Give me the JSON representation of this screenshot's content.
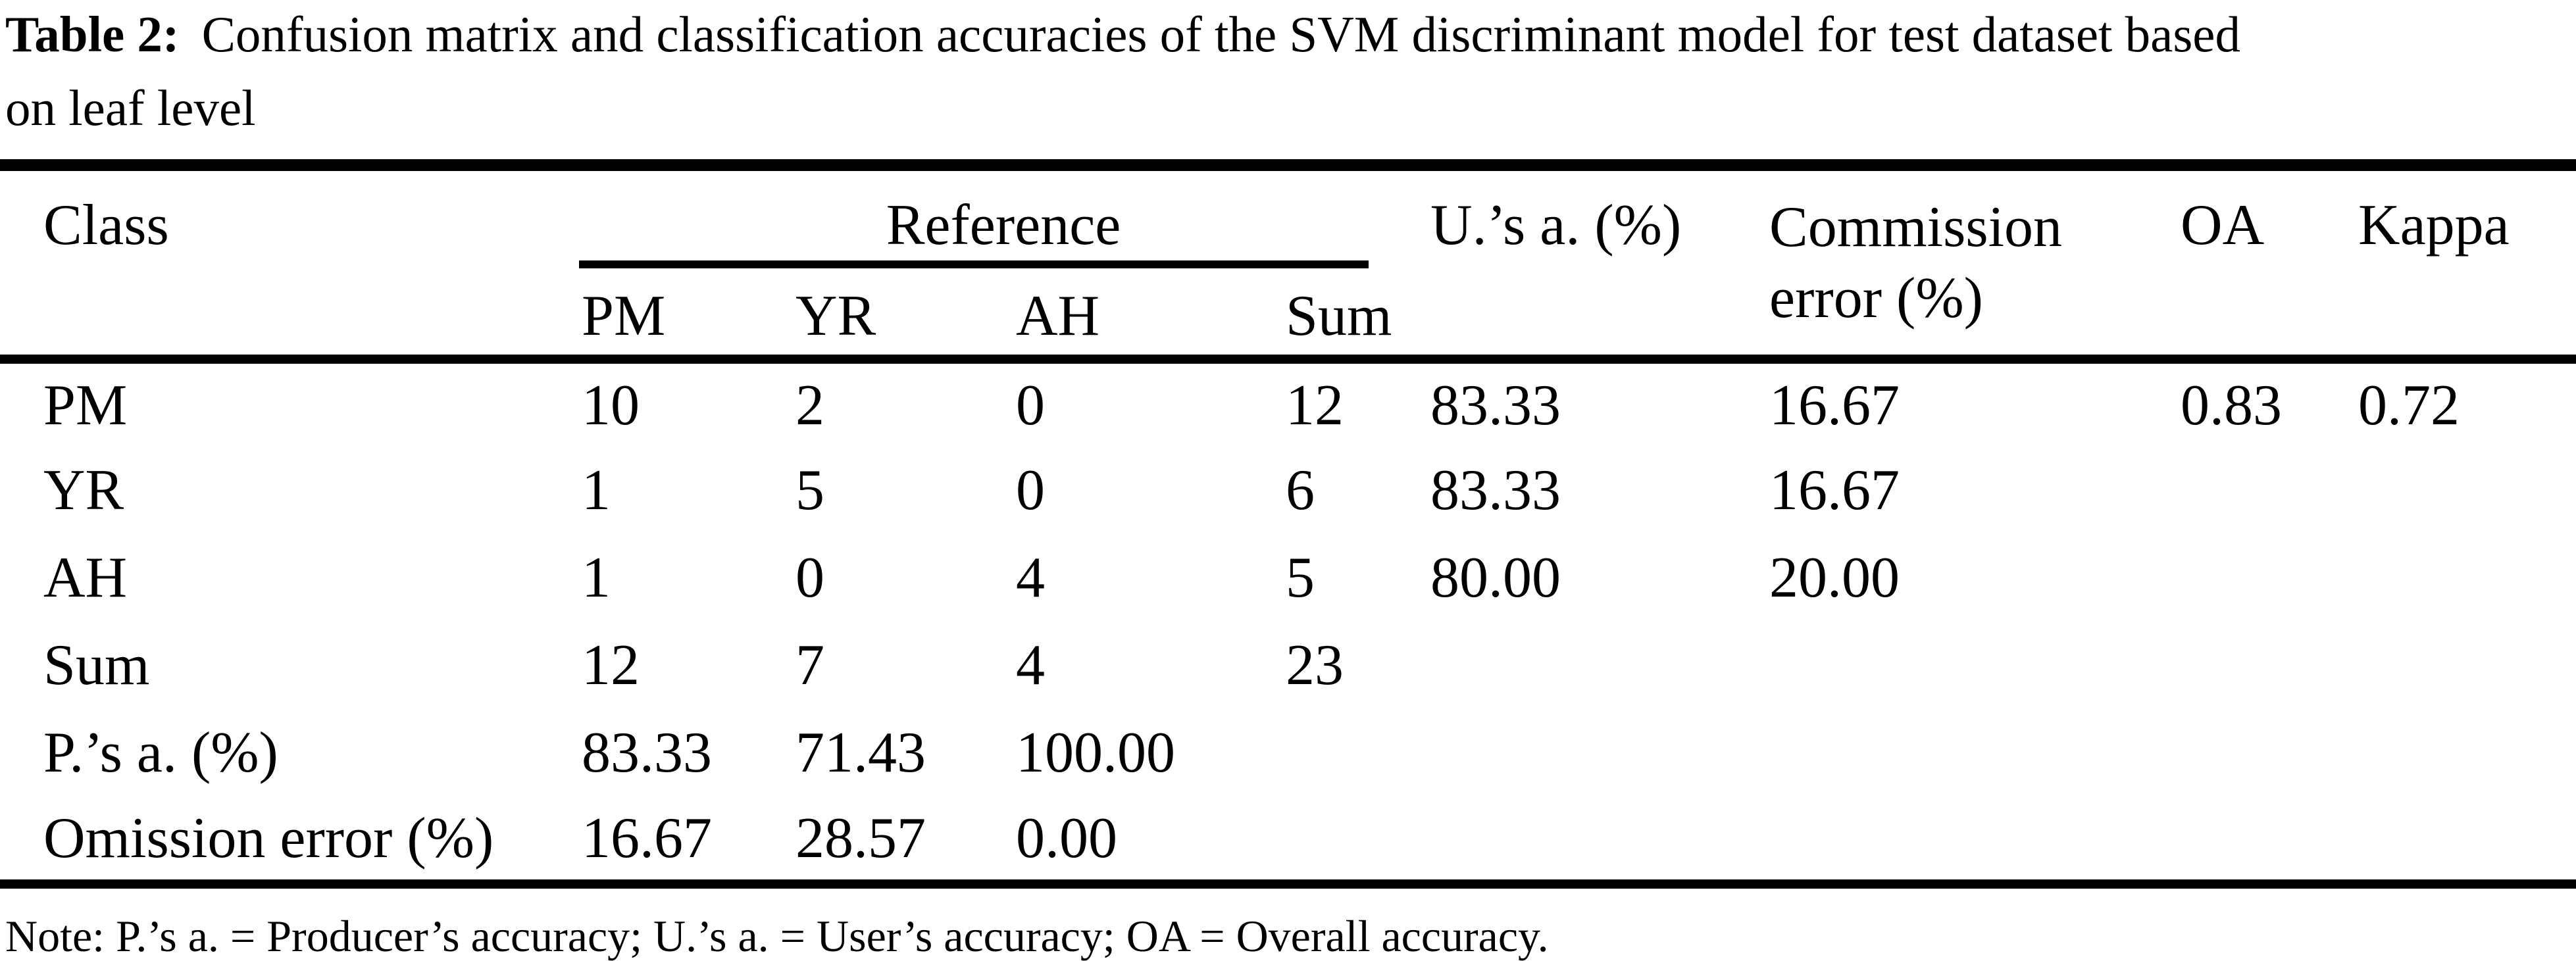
{
  "caption": {
    "label": "Table 2:",
    "line1": "Confusion matrix and classification accuracies of the SVM discriminant model for test dataset based",
    "line2": "on leaf level"
  },
  "table": {
    "headers": {
      "class": "Class",
      "reference": "Reference",
      "sub": [
        "PM",
        "YR",
        "AH",
        "Sum"
      ],
      "users_accuracy": "U.’s a. (%)",
      "commission_error": "Commission error (%)",
      "oa": "OA",
      "kappa": "Kappa"
    },
    "rows": [
      {
        "label": "PM",
        "pm": "10",
        "yr": "2",
        "ah": "0",
        "sum": "12",
        "ua": "83.33",
        "ce": "16.67",
        "oa": "0.83",
        "kappa": "0.72"
      },
      {
        "label": "YR",
        "pm": "1",
        "yr": "5",
        "ah": "0",
        "sum": "6",
        "ua": "83.33",
        "ce": "16.67",
        "oa": "",
        "kappa": ""
      },
      {
        "label": "AH",
        "pm": "1",
        "yr": "0",
        "ah": "4",
        "sum": "5",
        "ua": "80.00",
        "ce": "20.00",
        "oa": "",
        "kappa": ""
      },
      {
        "label": "Sum",
        "pm": "12",
        "yr": "7",
        "ah": "4",
        "sum": "23",
        "ua": "",
        "ce": "",
        "oa": "",
        "kappa": ""
      },
      {
        "label": "P.’s a. (%)",
        "pm": "83.33",
        "yr": "71.43",
        "ah": "100.00",
        "sum": "",
        "ua": "",
        "ce": "",
        "oa": "",
        "kappa": ""
      },
      {
        "label": "Omission error (%)",
        "pm": "16.67",
        "yr": "28.57",
        "ah": "0.00",
        "sum": "",
        "ua": "",
        "ce": "",
        "oa": "",
        "kappa": ""
      }
    ],
    "note": "Note: P.’s a. = Producer’s accuracy; U.’s a. = User’s accuracy; OA = Overall accuracy."
  },
  "chart_data": {
    "type": "table",
    "title": "Table 2: Confusion matrix and classification accuracies of the SVM discriminant model for test dataset based on leaf level",
    "columns": [
      "Class",
      "PM",
      "YR",
      "AH",
      "Sum",
      "U.’s a. (%)",
      "Commission error (%)",
      "OA",
      "Kappa"
    ],
    "rows": [
      [
        "PM",
        10,
        2,
        0,
        12,
        83.33,
        16.67,
        0.83,
        0.72
      ],
      [
        "YR",
        1,
        5,
        0,
        6,
        83.33,
        16.67,
        null,
        null
      ],
      [
        "AH",
        1,
        0,
        4,
        5,
        80.0,
        20.0,
        null,
        null
      ],
      [
        "Sum",
        12,
        7,
        4,
        23,
        null,
        null,
        null,
        null
      ],
      [
        "P.’s a. (%)",
        83.33,
        71.43,
        100.0,
        null,
        null,
        null,
        null,
        null
      ],
      [
        "Omission error (%)",
        16.67,
        28.57,
        0.0,
        null,
        null,
        null,
        null,
        null
      ]
    ],
    "note": "Note: P.’s a. = Producer’s accuracy; U.’s a. = User’s accuracy; OA = Overall accuracy."
  }
}
